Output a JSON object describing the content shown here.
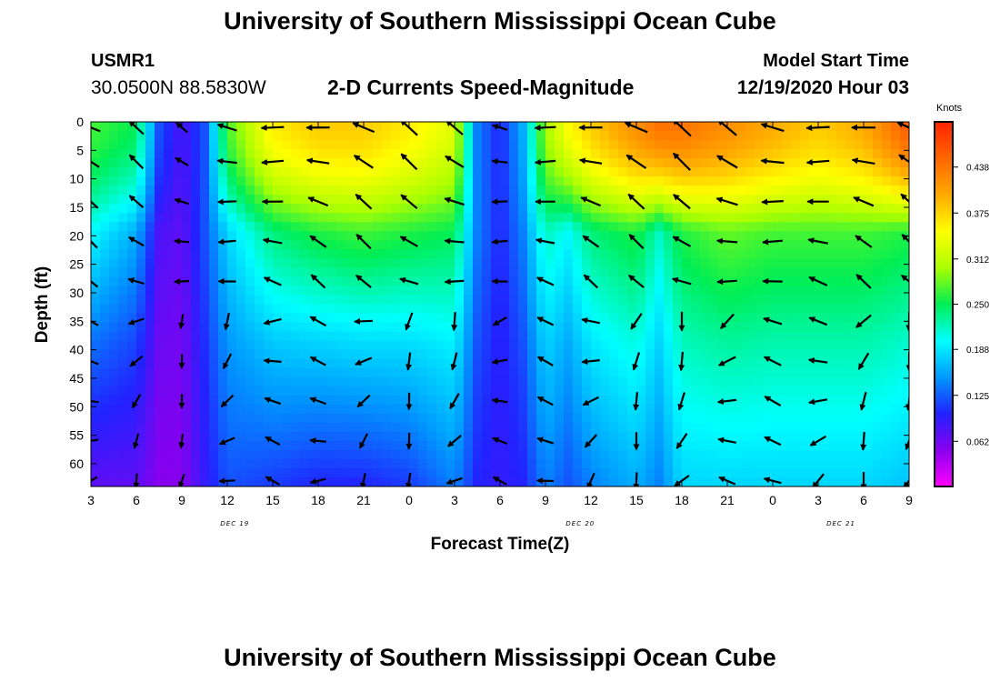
{
  "header": {
    "title": "University of Southern Mississippi Ocean Cube",
    "station": "USMR1",
    "coords": "30.0500N 88.5830W",
    "subtitle": "2-D Currents Speed-Magnitude",
    "model_start_label": "Model Start Time",
    "model_start_value": "12/19/2020 Hour 03"
  },
  "footer": {
    "title": "University of Southern Mississippi Ocean Cube"
  },
  "colorbar": {
    "unit": "Knots",
    "ticks": [
      "0.438",
      "0.375",
      "0.312",
      "0.250",
      "0.188",
      "0.125",
      "0.062"
    ],
    "tick_values": [
      0.438,
      0.375,
      0.312,
      0.25,
      0.188,
      0.125,
      0.062
    ],
    "range": [
      0.0,
      0.5
    ],
    "palette": [
      "#ff00ff",
      "#8800ee",
      "#2222ff",
      "#0099ff",
      "#00ffff",
      "#00ee55",
      "#aaff00",
      "#ffff00",
      "#ffaa00",
      "#ff6600",
      "#ff2200"
    ]
  },
  "chart_data": {
    "type": "heatmap",
    "xlabel": "Forecast Time(Z)",
    "ylabel": "Depth (ft)",
    "x_tick_labels": [
      "3",
      "6",
      "9",
      "12",
      "15",
      "18",
      "21",
      "0",
      "3",
      "6",
      "9",
      "12",
      "15",
      "18",
      "21",
      "0",
      "3",
      "6",
      "9"
    ],
    "x_hours_from_start": [
      0,
      3,
      6,
      9,
      12,
      15,
      18,
      21,
      24,
      27,
      30,
      33,
      36,
      39,
      42,
      45,
      48,
      51,
      54
    ],
    "xlim_hours": [
      0,
      54
    ],
    "y_tick_labels": [
      "0",
      "5",
      "10",
      "15",
      "20",
      "25",
      "30",
      "35",
      "40",
      "45",
      "50",
      "55",
      "60"
    ],
    "y_ticks_ft": [
      0,
      5,
      10,
      15,
      20,
      25,
      30,
      35,
      40,
      45,
      50,
      55,
      60
    ],
    "ylim_ft": [
      0,
      64
    ],
    "date_labels": [
      {
        "text": "DEC 19",
        "hour": 9.5
      },
      {
        "text": "DEC 20",
        "hour": 32.3
      },
      {
        "text": "DEC 21",
        "hour": 49.5
      }
    ],
    "vector_hours": [
      0,
      3,
      6,
      9,
      12,
      15,
      18,
      21,
      24,
      27,
      30,
      33,
      36,
      39,
      42,
      45,
      48,
      51,
      54
    ],
    "vector_depths_ft": [
      1,
      7,
      14,
      21,
      28,
      35,
      42,
      49,
      56,
      63
    ],
    "speed_knots_by_hour": {
      "hours": [
        0,
        3,
        4.5,
        6,
        7.5,
        9,
        12,
        15,
        18,
        21,
        24,
        25.5,
        27,
        28.5,
        30,
        31.5,
        33,
        36,
        37.5,
        39,
        42,
        45,
        48,
        51,
        54
      ],
      "surface": [
        0.27,
        0.25,
        0.12,
        0.08,
        0.12,
        0.27,
        0.36,
        0.38,
        0.38,
        0.36,
        0.33,
        0.14,
        0.1,
        0.16,
        0.3,
        0.35,
        0.38,
        0.42,
        0.44,
        0.44,
        0.42,
        0.4,
        0.38,
        0.4,
        0.46
      ],
      "mid_depth": [
        0.2,
        0.16,
        0.08,
        0.07,
        0.12,
        0.18,
        0.24,
        0.26,
        0.27,
        0.26,
        0.25,
        0.14,
        0.1,
        0.14,
        0.22,
        0.2,
        0.24,
        0.26,
        0.22,
        0.26,
        0.28,
        0.27,
        0.27,
        0.27,
        0.26
      ],
      "bottom": [
        0.07,
        0.07,
        0.05,
        0.05,
        0.09,
        0.12,
        0.11,
        0.1,
        0.1,
        0.11,
        0.14,
        0.1,
        0.09,
        0.1,
        0.14,
        0.12,
        0.14,
        0.16,
        0.14,
        0.18,
        0.18,
        0.18,
        0.18,
        0.18,
        0.17
      ]
    }
  }
}
